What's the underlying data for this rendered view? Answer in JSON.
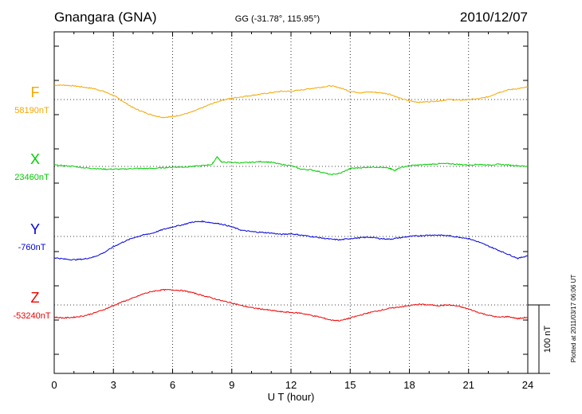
{
  "header": {
    "station": "Gnangara (GNA)",
    "coords": "GG (-31.78°, 115.95°)",
    "date": "2010/12/07"
  },
  "footer": {
    "plotted": "Plotted at 2011/03/17 06:06 UT"
  },
  "chart_data": {
    "type": "line",
    "title": "Gnangara (GNA)",
    "subtitle": "GG (-31.78°, 115.95°)",
    "date": "2010/12/07",
    "xlabel": "U T (hour)",
    "xlim": [
      0,
      24
    ],
    "xticks": [
      "0",
      "3",
      "6",
      "9",
      "12",
      "15",
      "18",
      "21",
      "24"
    ],
    "grid": true,
    "scale_bar": {
      "label": "100 nT",
      "value": 100
    },
    "series": [
      {
        "name": "F",
        "baseline_label": "58190nT",
        "color": "#f5a800",
        "x": [
          0,
          0.5,
          1,
          1.5,
          2,
          2.5,
          3,
          3.5,
          4,
          4.5,
          5,
          5.5,
          6,
          6.5,
          7,
          7.5,
          8,
          8.5,
          9,
          9.5,
          10,
          10.5,
          11,
          11.5,
          12,
          12.5,
          13,
          13.5,
          14,
          14.5,
          15,
          15.5,
          16,
          16.5,
          17,
          17.5,
          18,
          18.5,
          19,
          19.5,
          20,
          20.5,
          21,
          21.5,
          22,
          22.5,
          23,
          23.5,
          24
        ],
        "values": [
          21,
          21,
          20,
          18,
          16,
          12,
          6,
          -3,
          -12,
          -18,
          -23,
          -26,
          -25,
          -22,
          -18,
          -12,
          -6,
          -1,
          2,
          4,
          6,
          8,
          10,
          12,
          12,
          14,
          16,
          18,
          20,
          17,
          12,
          10,
          11,
          10,
          8,
          2,
          -2,
          -4,
          -3,
          -2,
          0,
          -1,
          0,
          1,
          4,
          10,
          14,
          16,
          18
        ]
      },
      {
        "name": "X",
        "baseline_label": "23460nT",
        "color": "#00cc00",
        "x": [
          0,
          0.5,
          1,
          1.5,
          2,
          2.5,
          3,
          3.5,
          4,
          4.5,
          5,
          5.5,
          6,
          6.5,
          7,
          7.5,
          8,
          8.25,
          8.5,
          9,
          9.5,
          10,
          10.5,
          11,
          11.5,
          12,
          12.5,
          13,
          13.5,
          14,
          14.5,
          15,
          15.5,
          16,
          16.5,
          17,
          17.25,
          17.5,
          18,
          18.5,
          19,
          19.5,
          20,
          20.5,
          21,
          21.5,
          22,
          22.5,
          23,
          23.5,
          24
        ],
        "values": [
          2,
          1,
          0,
          -2,
          -3,
          -4,
          -4,
          -4,
          -3,
          -3,
          -3,
          -2,
          -1,
          -1,
          0,
          1,
          3,
          14,
          6,
          6,
          5,
          6,
          7,
          6,
          3,
          1,
          -4,
          -5,
          -8,
          -12,
          -10,
          -3,
          -2,
          -1,
          -1,
          -3,
          -6,
          -2,
          1,
          2,
          3,
          4,
          4,
          3,
          2,
          3,
          2,
          3,
          2,
          1,
          0
        ]
      },
      {
        "name": "Y",
        "baseline_label": "-760nT",
        "color": "#0000dd",
        "x": [
          0,
          0.5,
          1,
          1.5,
          2,
          2.5,
          3,
          3.5,
          4,
          4.5,
          5,
          5.5,
          6,
          6.5,
          7,
          7.5,
          8,
          8.5,
          9,
          9.5,
          10,
          10.5,
          11,
          11.5,
          12,
          12.5,
          13,
          13.5,
          14,
          14.5,
          15,
          15.5,
          16,
          16.5,
          17,
          17.5,
          18,
          18.5,
          19,
          19.5,
          20,
          20.5,
          21,
          21.5,
          22,
          22.5,
          23,
          23.5,
          24
        ],
        "values": [
          -31,
          -33,
          -34,
          -33,
          -30,
          -24,
          -15,
          -8,
          -2,
          2,
          5,
          10,
          14,
          17,
          21,
          22,
          20,
          18,
          14,
          9,
          7,
          6,
          5,
          3,
          4,
          2,
          0,
          -2,
          -4,
          -5,
          -3,
          -2,
          -1,
          -3,
          -4,
          -2,
          0,
          1,
          2,
          2,
          1,
          -1,
          -3,
          -8,
          -14,
          -20,
          -26,
          -32,
          -28
        ]
      },
      {
        "name": "Z",
        "baseline_label": "-53240nT",
        "color": "#ee0000",
        "x": [
          0,
          0.5,
          1,
          1.5,
          2,
          2.5,
          3,
          3.5,
          4,
          4.5,
          5,
          5.5,
          6,
          6.5,
          7,
          7.5,
          8,
          8.5,
          9,
          9.5,
          10,
          10.5,
          11,
          11.5,
          12,
          12.5,
          13,
          13.5,
          14,
          14.5,
          15,
          15.5,
          16,
          16.5,
          17,
          17.5,
          18,
          18.5,
          19,
          19.5,
          20,
          20.5,
          21,
          21.5,
          22,
          22.5,
          23,
          23.5,
          24
        ],
        "values": [
          -18,
          -19,
          -18,
          -16,
          -12,
          -7,
          -1,
          5,
          10,
          16,
          20,
          22,
          22,
          21,
          18,
          14,
          10,
          6,
          3,
          -1,
          -4,
          -6,
          -8,
          -10,
          -11,
          -12,
          -15,
          -18,
          -22,
          -23,
          -19,
          -15,
          -11,
          -8,
          -5,
          -3,
          -1,
          1,
          0,
          -1,
          0,
          -2,
          -6,
          -11,
          -15,
          -18,
          -17,
          -20,
          -18
        ]
      }
    ]
  }
}
